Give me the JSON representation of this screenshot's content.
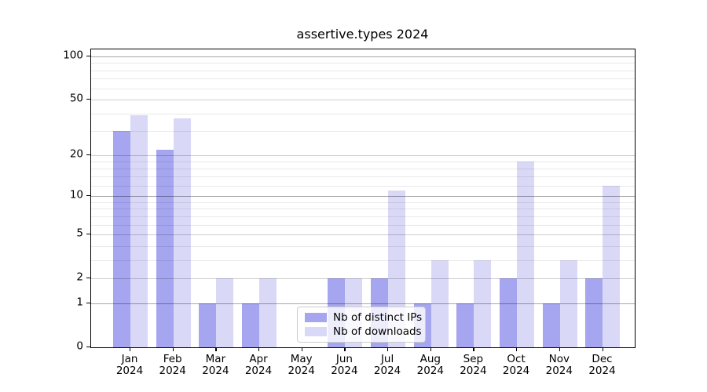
{
  "title": "assertive.types 2024",
  "chart_data": {
    "type": "bar",
    "title": "assertive.types 2024",
    "categories": [
      "Jan 2024",
      "Feb 2024",
      "Mar 2024",
      "Apr 2024",
      "May 2024",
      "Jun 2024",
      "Jul 2024",
      "Aug 2024",
      "Sep 2024",
      "Oct 2024",
      "Nov 2024",
      "Dec 2024"
    ],
    "series": [
      {
        "name": "Nb of distinct IPs",
        "color": "#a5a5f0",
        "values": [
          30,
          22,
          1,
          1,
          0,
          2,
          2,
          1,
          1,
          2,
          1,
          2
        ]
      },
      {
        "name": "Nb of downloads",
        "color": "#d9d9f7",
        "values": [
          39,
          37,
          2,
          2,
          0,
          2,
          11,
          3,
          3,
          18,
          3,
          12
        ]
      }
    ],
    "yscale": "log1p",
    "ylim": [
      0,
      112
    ],
    "y_ticks": [
      0,
      1,
      2,
      5,
      10,
      20,
      50,
      100
    ],
    "y_tick_labels": [
      "0",
      "1",
      "2",
      "5",
      "10",
      "20",
      "50",
      "100"
    ],
    "grid_lines": {
      "major": [
        1,
        10,
        100
      ],
      "mid": [
        2,
        5,
        20,
        50
      ],
      "minor": [
        3,
        4,
        6,
        7,
        8,
        9,
        12,
        14,
        16,
        18,
        30,
        40,
        60,
        70,
        80,
        90
      ]
    },
    "grid": "on",
    "legend_position": "lower center",
    "xlabel": "",
    "ylabel": "",
    "axis_color": "#000000",
    "background": "#ffffff"
  }
}
